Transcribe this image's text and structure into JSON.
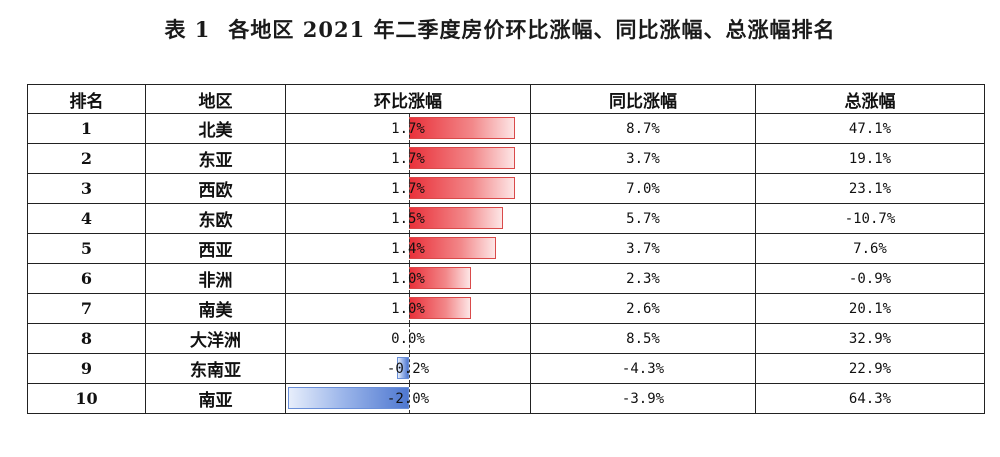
{
  "title": {
    "label": "表 1",
    "text": "各地区 2021 年二季度房价环比涨幅、同比涨幅、总涨幅排名"
  },
  "headers": [
    "排名",
    "地区",
    "环比涨幅",
    "同比涨幅",
    "总涨幅"
  ],
  "bar_colors": {
    "positive": "#e9313a",
    "negative": "#4f78d0"
  },
  "rows": [
    {
      "rank": "1",
      "region": "北美",
      "mom": "1.7%",
      "mom_value": 1.7,
      "yoy": "8.7%",
      "total": "47.1%"
    },
    {
      "rank": "2",
      "region": "东亚",
      "mom": "1.7%",
      "mom_value": 1.7,
      "yoy": "3.7%",
      "total": "19.1%"
    },
    {
      "rank": "3",
      "region": "西欧",
      "mom": "1.7%",
      "mom_value": 1.7,
      "yoy": "7.0%",
      "total": "23.1%"
    },
    {
      "rank": "4",
      "region": "东欧",
      "mom": "1.5%",
      "mom_value": 1.5,
      "yoy": "5.7%",
      "total": "-10.7%"
    },
    {
      "rank": "5",
      "region": "西亚",
      "mom": "1.4%",
      "mom_value": 1.4,
      "yoy": "3.7%",
      "total": "7.6%"
    },
    {
      "rank": "6",
      "region": "非洲",
      "mom": "1.0%",
      "mom_value": 1.0,
      "yoy": "2.3%",
      "total": "-0.9%"
    },
    {
      "rank": "7",
      "region": "南美",
      "mom": "1.0%",
      "mom_value": 1.0,
      "yoy": "2.6%",
      "total": "20.1%"
    },
    {
      "rank": "8",
      "region": "大洋洲",
      "mom": "0.0%",
      "mom_value": 0.0,
      "yoy": "8.5%",
      "total": "32.9%"
    },
    {
      "rank": "9",
      "region": "东南亚",
      "mom": "-0.2%",
      "mom_value": -0.2,
      "yoy": "-4.3%",
      "total": "22.9%"
    },
    {
      "rank": "10",
      "region": "南亚",
      "mom": "-2.0%",
      "mom_value": -2.0,
      "yoy": "-3.9%",
      "total": "64.3%"
    }
  ]
}
